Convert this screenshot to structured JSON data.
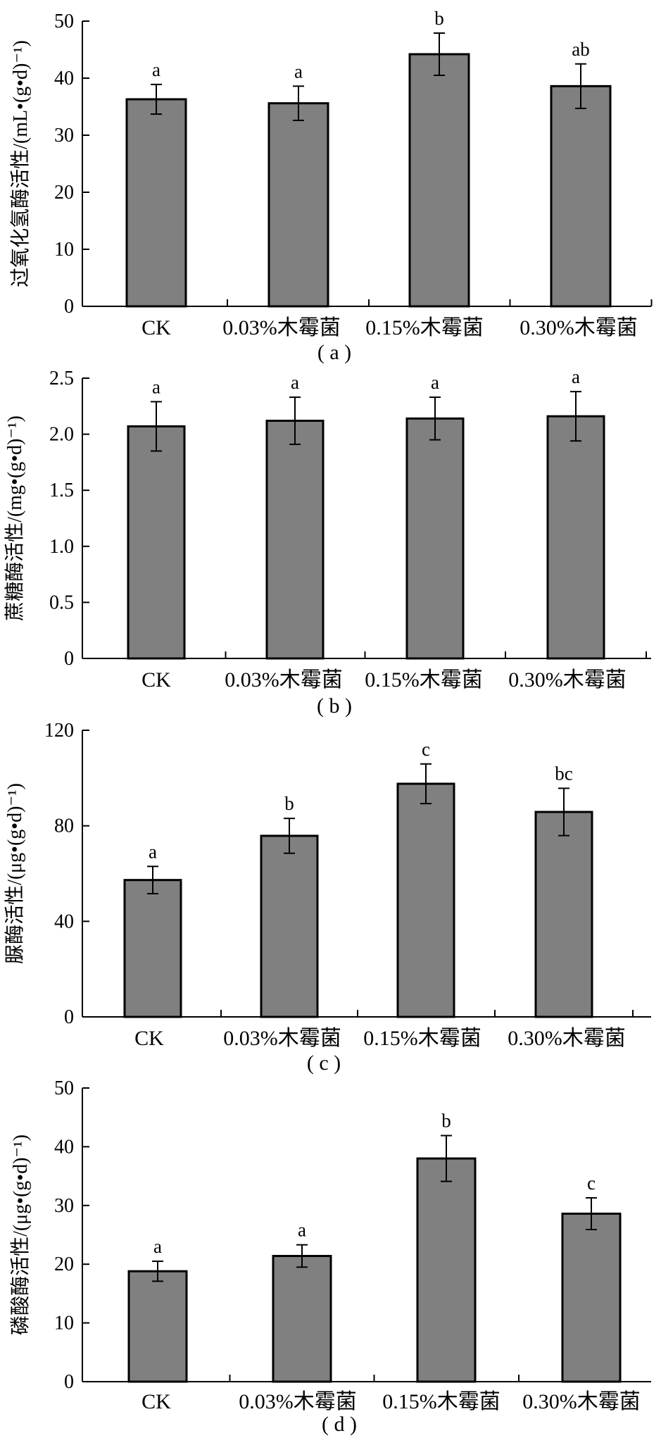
{
  "chart_data": [
    {
      "type": "bar",
      "panel_label": "( a )",
      "ylabel": "过氧化氢酶活性/(mL•(g•d)⁻¹)",
      "categories": [
        "CK",
        "0.03%木霉菌",
        "0.15%木霉菌",
        "0.30%木霉菌"
      ],
      "values": [
        36.3,
        35.6,
        44.2,
        38.6
      ],
      "errors": [
        2.6,
        3.0,
        3.7,
        3.9
      ],
      "significance": [
        "a",
        "a",
        "b",
        "ab"
      ],
      "ylim": [
        0,
        50
      ],
      "yticks": [
        0,
        10,
        20,
        30,
        40,
        50
      ],
      "ytick_labels": [
        "0",
        "10",
        "20",
        "30",
        "40",
        "50"
      ],
      "bar_color": "#808080"
    },
    {
      "type": "bar",
      "panel_label": "( b )",
      "ylabel": "蔗糖酶活性/(mg•(g•d)⁻¹)",
      "categories": [
        "CK",
        "0.03%木霉菌",
        "0.15%木霉菌",
        "0.30%木霉菌"
      ],
      "values": [
        2.07,
        2.12,
        2.14,
        2.16
      ],
      "errors": [
        0.22,
        0.21,
        0.19,
        0.22
      ],
      "significance": [
        "a",
        "a",
        "a",
        "a"
      ],
      "ylim": [
        0,
        2.5
      ],
      "yticks": [
        0,
        0.5,
        1.0,
        1.5,
        2.0,
        2.5
      ],
      "ytick_labels": [
        "0",
        "0.5",
        "1.0",
        "1.5",
        "2.0",
        "2.5"
      ],
      "bar_color": "#808080"
    },
    {
      "type": "bar",
      "panel_label": "( c )",
      "ylabel": "脲酶活性/(μg•(g•d)⁻¹)",
      "categories": [
        "CK",
        "0.03%木霉菌",
        "0.15%木霉菌",
        "0.30%木霉菌"
      ],
      "values": [
        57.3,
        75.8,
        97.6,
        85.8
      ],
      "errors": [
        5.7,
        7.3,
        8.3,
        9.9
      ],
      "significance": [
        "a",
        "b",
        "c",
        "bc"
      ],
      "ylim": [
        0,
        120
      ],
      "yticks": [
        0,
        40,
        80,
        120
      ],
      "ytick_labels": [
        "0",
        "40",
        "80",
        "120"
      ],
      "bar_color": "#808080"
    },
    {
      "type": "bar",
      "panel_label": "( d )",
      "ylabel": "磷酸酶活性/(μg•(g•d)⁻¹)",
      "categories": [
        "CK",
        "0.03%木霉菌",
        "0.15%木霉菌",
        "0.30%木霉菌"
      ],
      "values": [
        18.8,
        21.4,
        38.0,
        28.6
      ],
      "errors": [
        1.7,
        1.9,
        3.9,
        2.7
      ],
      "significance": [
        "a",
        "a",
        "b",
        "c"
      ],
      "ylim": [
        0,
        50
      ],
      "yticks": [
        0,
        10,
        20,
        30,
        40,
        50
      ],
      "ytick_labels": [
        "0",
        "10",
        "20",
        "30",
        "40",
        "50"
      ],
      "bar_color": "#808080"
    }
  ]
}
